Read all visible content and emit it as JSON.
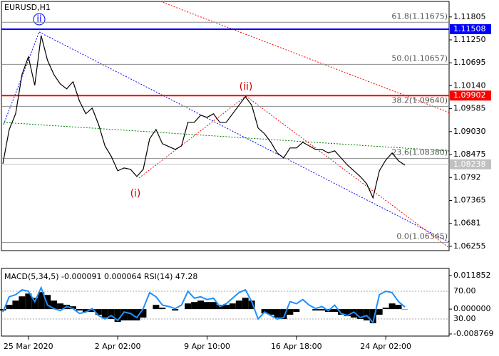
{
  "chart_data": {
    "type": "line",
    "title": "EURUSD,H1",
    "categories": [
      null,
      null,
      null,
      null,
      "25 Mar 2020",
      null,
      null,
      null,
      null,
      null,
      null,
      null,
      null,
      null,
      null,
      null,
      null,
      null,
      "2 Apr 02:00",
      null,
      null,
      null,
      null,
      null,
      null,
      null,
      null,
      null,
      null,
      null,
      null,
      null,
      "9 Apr 10:00",
      null,
      null,
      null,
      null,
      null,
      null,
      null,
      null,
      null,
      null,
      null,
      null,
      null,
      "16 Apr 18:00",
      null,
      null,
      null,
      null,
      null,
      null,
      null,
      null,
      null,
      null,
      null,
      null,
      null,
      "24 Apr 02:00",
      null,
      null,
      null
    ],
    "values": [
      1.08254,
      1.09082,
      1.09461,
      1.10409,
      1.1084,
      1.1015,
      1.11357,
      1.10754,
      1.10409,
      1.10185,
      1.10064,
      1.10237,
      1.09771,
      1.09461,
      1.09599,
      1.09202,
      1.08685,
      1.08427,
      1.08082,
      1.08151,
      1.08117,
      1.07944,
      1.08117,
      1.08858,
      1.09082,
      1.08737,
      1.08668,
      1.08599,
      1.08685,
      1.09254,
      1.09254,
      1.09426,
      1.09375,
      1.09461,
      1.09254,
      1.09254,
      1.09461,
      1.09668,
      1.09875,
      1.09668,
      1.09116,
      1.08978,
      1.08771,
      1.08513,
      1.08392,
      1.08634,
      1.08634,
      1.08771,
      1.08685,
      1.08599,
      1.08599,
      1.08513,
      1.08565,
      1.08392,
      1.0822,
      1.08082,
      1.07944,
      1.07772,
      1.07427,
      1.08082,
      1.08341,
      1.08513,
      1.08323,
      1.0822
    ],
    "color": "#000000",
    "ylim": [
      1.0615,
      1.1218
    ],
    "yticks": [
      1.11805,
      {
        "value": 1.1125,
        "label": "1.11250"
      },
      1.10695,
      {
        "value": 1.1014,
        "label": "1.10140"
      },
      1.09585,
      {
        "value": 1.0903,
        "label": "1.09030"
      },
      1.08475,
      1.0792,
      1.07365,
      1.0681,
      1.06255
    ],
    "levels": [
      {
        "value": 1.11508,
        "color": "#0000ff"
      },
      {
        "value": 1.09902,
        "color": "#ff0000"
      },
      {
        "value": 1.08238,
        "color": "#c0c0c0"
      }
    ],
    "fib_levels": [
      {
        "value": 1.11675,
        "label": "61.8(1.11675)"
      },
      {
        "value": 1.10657,
        "label": "50.0(1.10657)"
      },
      {
        "value": 1.0964,
        "label": "38.2(1.09640)"
      },
      {
        "value": 1.0838,
        "label": "23.6(1.08380)"
      },
      {
        "value": 1.06345,
        "label": "0.0(1.06345)"
      }
    ],
    "wave_labels": [
      "ii",
      "(ii)",
      "(i)"
    ],
    "indicator": {
      "type": "macd",
      "title": "MACD(5,34,5) -0.000091 0.000064 RSI(14) 47.28",
      "histogram": {
        "color": "#000000",
        "values": [
          -0.0005,
          0.0015,
          0.003,
          0.0045,
          0.0055,
          0.004,
          0.006,
          0.005,
          0.003,
          0.002,
          0.0015,
          0.001,
          -0.0005,
          -0.001,
          -0.001,
          -0.002,
          -0.003,
          -0.0035,
          -0.0045,
          -0.004,
          -0.004,
          -0.004,
          -0.003,
          0,
          0.0015,
          0.0005,
          0,
          -0.0005,
          0,
          0.002,
          0.0025,
          0.003,
          0.0025,
          0.0025,
          0.0015,
          0.0015,
          0.002,
          0.003,
          0.004,
          0.003,
          0,
          -0.0015,
          -0.002,
          -0.003,
          -0.0035,
          -0.002,
          -0.001,
          0,
          0,
          -0.0005,
          -0.0005,
          -0.001,
          -0.001,
          -0.002,
          -0.0025,
          -0.003,
          -0.0035,
          -0.004,
          -0.005,
          -0.002,
          0.0005,
          0.002,
          0.0015,
          -9.1e-05
        ]
      },
      "rsi": {
        "color": "#1e90ff",
        "values": [
          40,
          62,
          65,
          72,
          70,
          55,
          75,
          50,
          45,
          42,
          48,
          45,
          38,
          40,
          45,
          35,
          30,
          35,
          28,
          40,
          38,
          32,
          45,
          68,
          62,
          50,
          48,
          45,
          50,
          70,
          60,
          62,
          58,
          60,
          48,
          52,
          60,
          68,
          72,
          55,
          30,
          40,
          35,
          30,
          32,
          55,
          52,
          58,
          50,
          45,
          48,
          42,
          50,
          38,
          35,
          40,
          32,
          35,
          25,
          65,
          70,
          68,
          55,
          47.28
        ]
      },
      "ylim": [
        -0.008769,
        0.011852
      ],
      "yticks": [
        0.011852,
        {
          "value": 0,
          "label": "0.000000"
        },
        -0.008769
      ],
      "rsi_ylim": [
        8.5,
        92.6
      ],
      "rsi_ticks": [
        {
          "value": 70,
          "label": "70.00"
        },
        {
          "value": 30,
          "label": "30.00"
        }
      ]
    }
  }
}
